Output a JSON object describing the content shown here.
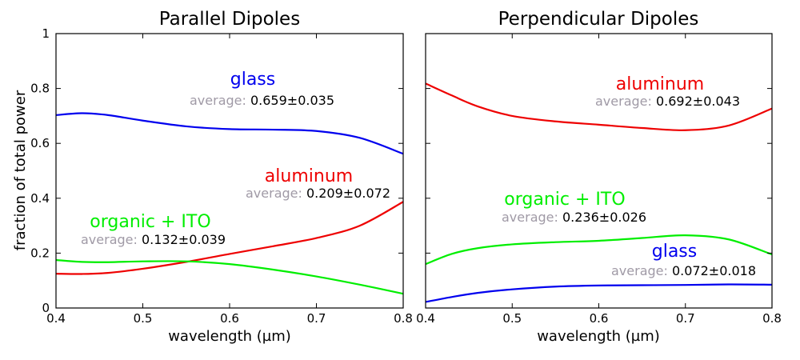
{
  "figure": {
    "ylabel": "fraction of total power"
  },
  "chart_data": [
    {
      "type": "line",
      "title": "Parallel Dipoles",
      "xlabel": "wavelength (µm)",
      "ylabel": "fraction of total power",
      "xlim": [
        0.4,
        0.8
      ],
      "ylim": [
        0,
        1
      ],
      "xticks": [
        "0.4",
        "0.5",
        "0.6",
        "0.7",
        "0.8"
      ],
      "yticks": [
        "0",
        "0.2",
        "0.4",
        "0.6",
        "0.8",
        "1"
      ],
      "grid": false,
      "series": [
        {
          "name": "glass",
          "color": "#0000ee",
          "average_label": "average:",
          "average_value": "0.659±0.035",
          "x": [
            0.4,
            0.43,
            0.46,
            0.5,
            0.55,
            0.6,
            0.65,
            0.7,
            0.75,
            0.8
          ],
          "y": [
            0.703,
            0.71,
            0.703,
            0.683,
            0.662,
            0.652,
            0.65,
            0.645,
            0.62,
            0.562
          ]
        },
        {
          "name": "aluminum",
          "color": "#ee0000",
          "average_label": "average:",
          "average_value": "0.209±0.072",
          "x": [
            0.4,
            0.43,
            0.46,
            0.5,
            0.55,
            0.6,
            0.65,
            0.7,
            0.75,
            0.8
          ],
          "y": [
            0.125,
            0.124,
            0.128,
            0.143,
            0.168,
            0.197,
            0.225,
            0.255,
            0.3,
            0.387
          ]
        },
        {
          "name": "organic + ITO",
          "color": "#00ee00",
          "average_label": "average:",
          "average_value": "0.132±0.039",
          "x": [
            0.4,
            0.43,
            0.46,
            0.5,
            0.55,
            0.6,
            0.65,
            0.7,
            0.75,
            0.8
          ],
          "y": [
            0.175,
            0.168,
            0.167,
            0.17,
            0.17,
            0.16,
            0.14,
            0.115,
            0.085,
            0.052
          ]
        }
      ]
    },
    {
      "type": "line",
      "title": "Perpendicular Dipoles",
      "xlabel": "wavelength (µm)",
      "ylabel": "",
      "xlim": [
        0.4,
        0.8
      ],
      "ylim": [
        0,
        1
      ],
      "xticks": [
        "0.4",
        "0.5",
        "0.6",
        "0.7",
        "0.8"
      ],
      "yticks": [],
      "grid": false,
      "series": [
        {
          "name": "aluminum",
          "color": "#ee0000",
          "average_label": "average:",
          "average_value": "0.692±0.043",
          "x": [
            0.4,
            0.43,
            0.46,
            0.5,
            0.55,
            0.6,
            0.65,
            0.7,
            0.75,
            0.8
          ],
          "y": [
            0.818,
            0.775,
            0.735,
            0.7,
            0.68,
            0.668,
            0.656,
            0.648,
            0.665,
            0.727
          ]
        },
        {
          "name": "organic + ITO",
          "color": "#00ee00",
          "average_label": "average:",
          "average_value": "0.236±0.026",
          "x": [
            0.4,
            0.43,
            0.46,
            0.5,
            0.55,
            0.6,
            0.65,
            0.7,
            0.75,
            0.8
          ],
          "y": [
            0.16,
            0.197,
            0.218,
            0.232,
            0.24,
            0.245,
            0.255,
            0.265,
            0.25,
            0.195
          ]
        },
        {
          "name": "glass",
          "color": "#0000ee",
          "average_label": "average:",
          "average_value": "0.072±0.018",
          "x": [
            0.4,
            0.43,
            0.46,
            0.5,
            0.55,
            0.6,
            0.65,
            0.7,
            0.75,
            0.8
          ],
          "y": [
            0.022,
            0.04,
            0.055,
            0.068,
            0.078,
            0.082,
            0.083,
            0.084,
            0.086,
            0.085
          ]
        }
      ]
    }
  ]
}
